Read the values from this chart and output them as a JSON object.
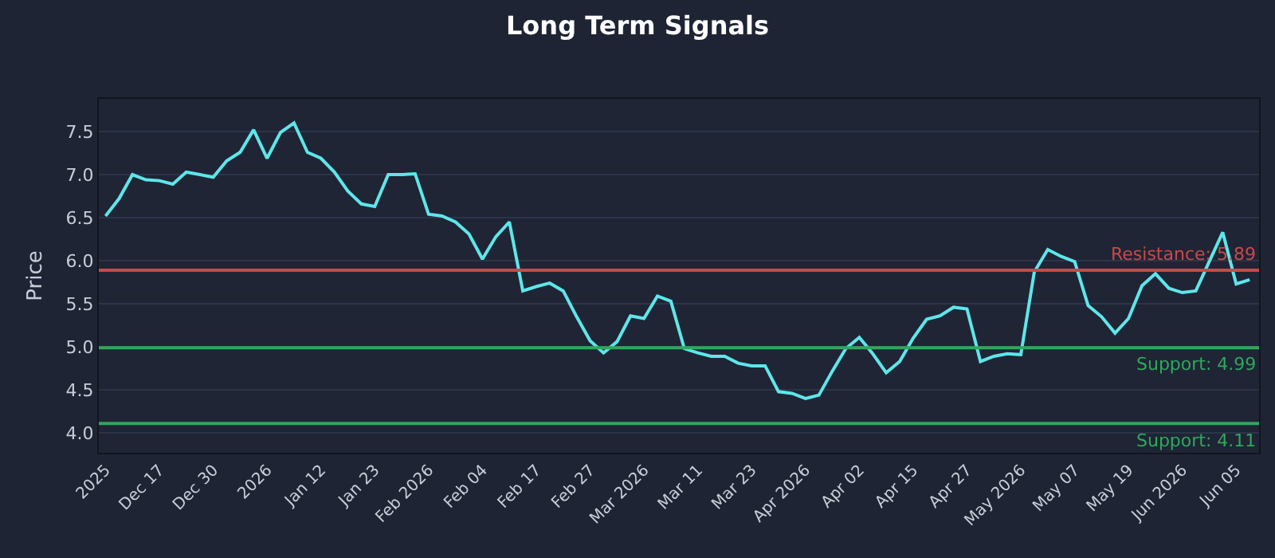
{
  "chart_data": {
    "type": "line",
    "title": "Long Term Signals",
    "ylabel": "Price",
    "categories": [
      "2025",
      null,
      null,
      null,
      "Dec 17",
      null,
      null,
      null,
      "Dec 30",
      null,
      null,
      null,
      "2026",
      null,
      null,
      null,
      "Jan 12",
      null,
      null,
      null,
      "Jan 23",
      null,
      null,
      null,
      "Feb 2026",
      null,
      null,
      null,
      "Feb 04",
      null,
      null,
      null,
      "Feb 17",
      null,
      null,
      null,
      "Feb 27",
      null,
      null,
      null,
      "Mar 2026",
      null,
      null,
      null,
      "Mar 11",
      null,
      null,
      null,
      "Mar 23",
      null,
      null,
      null,
      "Apr 2026",
      null,
      null,
      null,
      "Apr 02",
      null,
      null,
      null,
      "Apr 15",
      null,
      null,
      null,
      "Apr 27",
      null,
      null,
      null,
      "May 2026",
      null,
      null,
      null,
      "May 07",
      null,
      null,
      null,
      "May 19",
      null,
      null,
      null,
      "Jun 2026",
      null,
      null,
      null,
      "Jun 05",
      null
    ],
    "series": [
      {
        "color": "#5ee6ea",
        "values": [
          6.52,
          6.72,
          7.0,
          6.94,
          6.93,
          6.89,
          7.03,
          7.0,
          6.97,
          7.16,
          7.26,
          7.52,
          7.19,
          7.49,
          7.6,
          7.26,
          7.19,
          7.03,
          6.81,
          6.66,
          6.63,
          7.0,
          7.0,
          7.01,
          6.54,
          6.52,
          6.45,
          6.31,
          6.02,
          6.28,
          6.45,
          5.65,
          5.7,
          5.74,
          5.65,
          5.35,
          5.07,
          4.93,
          5.06,
          5.36,
          5.33,
          5.59,
          5.53,
          4.98,
          4.93,
          4.89,
          4.89,
          4.81,
          4.78,
          4.78,
          4.48,
          4.46,
          4.4,
          4.44,
          4.72,
          4.98,
          5.11,
          4.92,
          4.7,
          4.83,
          5.1,
          5.32,
          5.36,
          5.46,
          5.44,
          4.83,
          4.89,
          4.92,
          4.91,
          5.87,
          6.13,
          6.05,
          5.99,
          5.48,
          5.35,
          5.16,
          5.33,
          5.71,
          5.85,
          5.68,
          5.63,
          5.65,
          5.99,
          6.33,
          5.73,
          5.78
        ]
      }
    ],
    "ylim": [
      3.77,
      7.88
    ],
    "yticks": [
      {
        "value": 4,
        "label": "4.0"
      },
      4.5,
      {
        "value": 5,
        "label": "5.0"
      },
      5.5,
      {
        "value": 6,
        "label": "6.0"
      },
      6.5,
      {
        "value": 7,
        "label": "7.0"
      },
      7.5
    ],
    "ref_lines": [
      {
        "axis": "y",
        "value": 5.89,
        "label": "Resistance: 5.89",
        "color": "#c9494a"
      },
      {
        "axis": "y",
        "value": 4.99,
        "label": "Support: 4.99",
        "color": "#2ea85c"
      },
      {
        "axis": "y",
        "value": 4.11,
        "label": "Support: 4.11",
        "color": "#2ea85c"
      }
    ],
    "grid": "y",
    "legend": false,
    "marker": "none",
    "line_style": "solid"
  }
}
